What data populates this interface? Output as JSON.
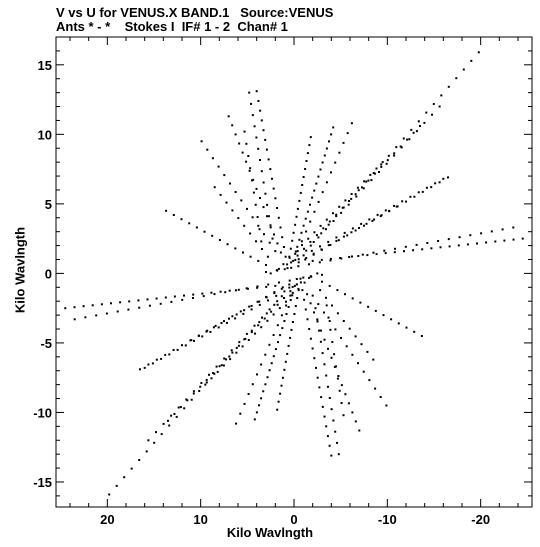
{
  "header": {
    "line1": "V vs U for VENUS.X BAND.1   Source:VENUS",
    "line2": "Ants * - *    Stokes I  IF# 1 - 2  Chan# 1"
  },
  "chart_data": {
    "type": "scatter",
    "title": "V vs U for VENUS.X BAND.1   Source:VENUS",
    "subtitle": "Ants * - *    Stokes I  IF# 1 - 2  Chan# 1",
    "xlabel": "Kilo Wavlngth",
    "ylabel": "Kilo Wavlngth",
    "xlim": [
      25.5,
      -25.5
    ],
    "ylim": [
      -16.8,
      17.0
    ],
    "x_reversed": true,
    "xticks": [
      20,
      10,
      0,
      -10,
      -20
    ],
    "xtick_labels": [
      "20",
      "10",
      "0",
      "-10",
      "-20"
    ],
    "yticks": [
      15,
      10,
      5,
      0,
      -5,
      -10,
      -15
    ],
    "ytick_labels": [
      "15",
      "10",
      "5",
      "0",
      "-5",
      "-10",
      "-15"
    ],
    "grid": false,
    "marker_color": "#000000",
    "tracks": [
      {
        "u0": 0.3,
        "v0": 0.4,
        "u1": -19.8,
        "v1": 15.9,
        "n": 26
      },
      {
        "u0": -0.3,
        "v0": -0.4,
        "u1": 19.8,
        "v1": -15.9,
        "n": 26
      },
      {
        "u0": 1.0,
        "v0": 0.3,
        "u1": -13.5,
        "v1": 10.6,
        "n": 22
      },
      {
        "u0": -1.0,
        "v0": -0.3,
        "u1": 13.5,
        "v1": -10.6,
        "n": 22
      },
      {
        "u0": 1.8,
        "v0": 0.2,
        "u1": -9.5,
        "v1": 8.0,
        "n": 18
      },
      {
        "u0": -1.8,
        "v0": -0.2,
        "u1": 9.5,
        "v1": -8.0,
        "n": 18
      },
      {
        "u0": 2.5,
        "v0": 0.0,
        "u1": -16.0,
        "v1": 6.8,
        "n": 22
      },
      {
        "u0": -2.5,
        "v0": 0.0,
        "u1": 16.0,
        "v1": -6.8,
        "n": 22
      },
      {
        "u0": 3.0,
        "v0": 0.1,
        "u1": -23.5,
        "v1": 3.3,
        "n": 24
      },
      {
        "u0": -3.0,
        "v0": -0.1,
        "u1": 23.5,
        "v1": -3.3,
        "n": 24
      },
      {
        "u0": -0.5,
        "v0": 0.8,
        "u1": -11.0,
        "v1": 4.8,
        "n": 14
      },
      {
        "u0": 0.5,
        "v0": -0.8,
        "u1": 11.0,
        "v1": -4.8,
        "n": 14
      },
      {
        "u0": -1.2,
        "v0": 1.0,
        "u1": -16.5,
        "v1": 6.9,
        "n": 18
      },
      {
        "u0": 1.2,
        "v0": -1.0,
        "u1": 16.5,
        "v1": -6.9,
        "n": 18
      },
      {
        "u0": -2.0,
        "v0": 0.9,
        "u1": -24.5,
        "v1": 2.5,
        "n": 24
      },
      {
        "u0": 2.0,
        "v0": -0.9,
        "u1": 24.5,
        "v1": -2.5,
        "n": 24
      },
      {
        "u0": 0.1,
        "v0": 0.9,
        "u1": -4.2,
        "v1": 10.5,
        "n": 20
      },
      {
        "u0": -0.1,
        "v0": -0.9,
        "u1": 4.2,
        "v1": -10.5,
        "n": 20
      },
      {
        "u0": 0.5,
        "v0": 1.2,
        "u1": -1.8,
        "v1": 9.8,
        "n": 16
      },
      {
        "u0": -0.5,
        "v0": -1.2,
        "u1": 1.8,
        "v1": -9.8,
        "n": 16
      },
      {
        "u0": 0.9,
        "v0": 1.2,
        "u1": 4.0,
        "v1": 13.1,
        "n": 18
      },
      {
        "u0": -0.9,
        "v0": -1.2,
        "u1": -4.0,
        "v1": -13.1,
        "n": 18
      },
      {
        "u0": 1.4,
        "v0": 1.5,
        "u1": 7.0,
        "v1": 11.3,
        "n": 16
      },
      {
        "u0": -1.4,
        "v0": -1.5,
        "u1": -7.0,
        "v1": -11.3,
        "n": 16
      },
      {
        "u0": 2.0,
        "v0": 1.6,
        "u1": 9.9,
        "v1": 9.5,
        "n": 14
      },
      {
        "u0": -2.0,
        "v0": -1.6,
        "u1": -9.9,
        "v1": -9.5,
        "n": 14
      },
      {
        "u0": 2.8,
        "v0": 1.2,
        "u1": 8.5,
        "v1": 6.2,
        "n": 10
      },
      {
        "u0": -2.8,
        "v0": -1.2,
        "u1": -8.5,
        "v1": -6.2,
        "n": 10
      },
      {
        "u0": 3.0,
        "v0": 0.6,
        "u1": 13.7,
        "v1": 4.5,
        "n": 14
      },
      {
        "u0": -3.0,
        "v0": -0.6,
        "u1": -13.7,
        "v1": -4.5,
        "n": 14
      },
      {
        "u0": -1.8,
        "v0": 2.0,
        "u1": -15.6,
        "v1": 12.0,
        "n": 18
      },
      {
        "u0": 1.8,
        "v0": -2.0,
        "u1": 15.6,
        "v1": -12.0,
        "n": 18
      },
      {
        "u0": 2.3,
        "v0": 2.5,
        "u1": 4.8,
        "v1": 13.0,
        "n": 14
      },
      {
        "u0": -2.3,
        "v0": -2.5,
        "u1": -4.8,
        "v1": -13.0,
        "n": 14
      },
      {
        "u0": 3.5,
        "v0": 2.3,
        "u1": 5.3,
        "v1": 10.2,
        "n": 10
      },
      {
        "u0": -3.5,
        "v0": -2.3,
        "u1": -5.3,
        "v1": -10.2,
        "n": 10
      },
      {
        "u0": -0.4,
        "v0": 1.6,
        "u1": -6.2,
        "v1": 10.8,
        "n": 14
      },
      {
        "u0": 0.4,
        "v0": -1.6,
        "u1": 6.2,
        "v1": -10.8,
        "n": 14
      }
    ]
  }
}
